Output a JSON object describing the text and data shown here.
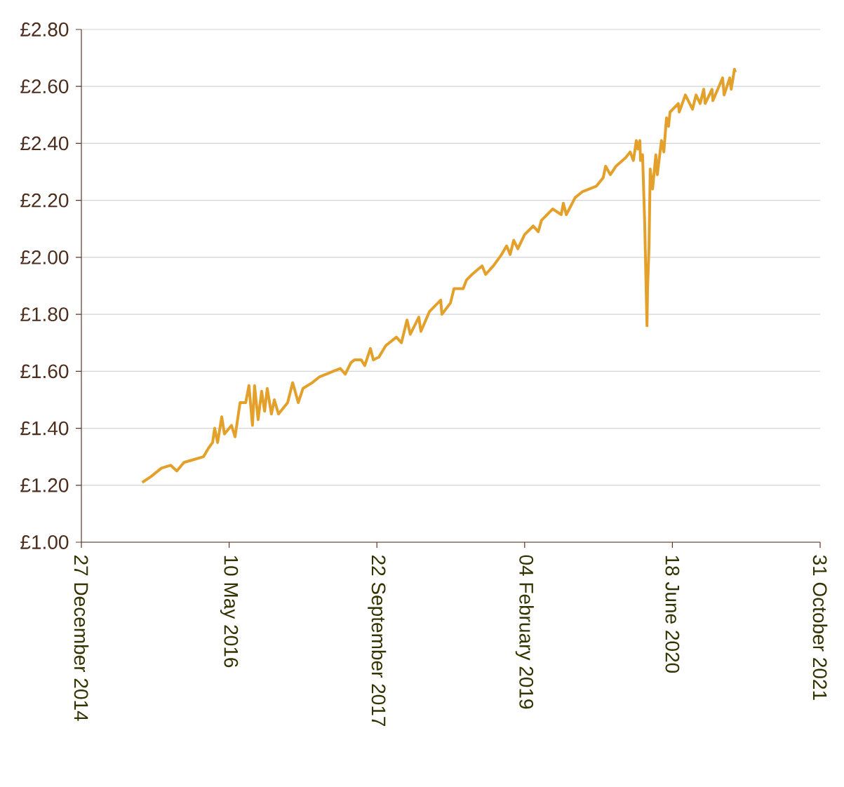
{
  "chart_data": {
    "type": "line",
    "color": "#e3a02a",
    "grid": "y",
    "xlim": [
      "2014-12-27",
      "2021-10-31"
    ],
    "xticks": [
      {
        "value": "2014-12-27",
        "label": "27 December 2014"
      },
      {
        "value": "2016-05-10",
        "label": "10 May 2016"
      },
      {
        "value": "2017-09-22",
        "label": "22 September 2017"
      },
      {
        "value": "2019-02-04",
        "label": "04 February 2019"
      },
      {
        "value": "2020-06-18",
        "label": "18 June 2020"
      },
      {
        "value": "2021-10-31",
        "label": "31 October 2021"
      }
    ],
    "ylim": [
      1.0,
      2.8
    ],
    "yticks": [
      {
        "value": 1.0,
        "label": "£1.00"
      },
      {
        "value": 1.2,
        "label": "£1.20"
      },
      {
        "value": 1.4,
        "label": "£1.40"
      },
      {
        "value": 1.6,
        "label": "£1.60"
      },
      {
        "value": 1.8,
        "label": "£1.80"
      },
      {
        "value": 2.0,
        "label": "£2.00"
      },
      {
        "value": 2.2,
        "label": "£2.20"
      },
      {
        "value": 2.4,
        "label": "£2.40"
      },
      {
        "value": 2.6,
        "label": "£2.60"
      },
      {
        "value": 2.8,
        "label": "£2.80"
      }
    ],
    "x": [
      "2015-07-21",
      "2015-08-19",
      "2015-09-24",
      "2015-10-25",
      "2015-11-15",
      "2015-12-09",
      "2016-01-11",
      "2016-02-13",
      "2016-03-01",
      "2016-03-15",
      "2016-03-22",
      "2016-04-01",
      "2016-04-15",
      "2016-04-24",
      "2016-05-18",
      "2016-05-30",
      "2016-06-16",
      "2016-07-05",
      "2016-07-16",
      "2016-07-28",
      "2016-08-04",
      "2016-08-16",
      "2016-08-28",
      "2016-09-07",
      "2016-09-16",
      "2016-09-30",
      "2016-10-10",
      "2016-10-24",
      "2016-11-24",
      "2016-12-11",
      "2016-12-30",
      "2017-01-15",
      "2017-02-15",
      "2017-03-11",
      "2017-04-04",
      "2017-04-27",
      "2017-05-21",
      "2017-06-07",
      "2017-06-26",
      "2017-07-08",
      "2017-07-31",
      "2017-08-12",
      "2017-08-31",
      "2017-09-10",
      "2017-09-29",
      "2017-10-22",
      "2017-11-27",
      "2017-12-14",
      "2018-01-02",
      "2018-01-13",
      "2018-02-11",
      "2018-02-18",
      "2018-03-19",
      "2018-04-26",
      "2018-04-30",
      "2018-05-29",
      "2018-06-10",
      "2018-07-11",
      "2018-07-22",
      "2018-08-10",
      "2018-09-13",
      "2018-09-25",
      "2018-10-21",
      "2018-11-18",
      "2018-12-05",
      "2018-12-17",
      "2018-12-29",
      "2019-01-12",
      "2019-02-04",
      "2019-03-05",
      "2019-03-22",
      "2019-04-02",
      "2019-05-10",
      "2019-06-08",
      "2019-06-15",
      "2019-06-25",
      "2019-07-25",
      "2019-08-18",
      "2019-10-05",
      "2019-10-28",
      "2019-11-05",
      "2019-11-21",
      "2019-12-10",
      "2020-01-12",
      "2020-01-27",
      "2020-02-07",
      "2020-02-17",
      "2020-02-22",
      "2020-02-29",
      "2020-03-02",
      "2020-03-09",
      "2020-03-16",
      "2020-03-24",
      "2020-03-26",
      "2020-03-31",
      "2020-04-04",
      "2020-04-12",
      "2020-04-23",
      "2020-04-28",
      "2020-05-12",
      "2020-05-20",
      "2020-05-29",
      "2020-06-05",
      "2020-06-10",
      "2020-07-08",
      "2020-07-11",
      "2020-08-01",
      "2020-08-25",
      "2020-09-06",
      "2020-09-20",
      "2020-10-02",
      "2020-10-07",
      "2020-10-30",
      "2020-11-02",
      "2020-12-05",
      "2020-12-10",
      "2020-12-29",
      "2021-01-03",
      "2021-01-14",
      "2021-01-17"
    ],
    "values": [
      1.21,
      1.23,
      1.26,
      1.27,
      1.25,
      1.28,
      1.29,
      1.3,
      1.33,
      1.35,
      1.4,
      1.35,
      1.44,
      1.38,
      1.41,
      1.37,
      1.49,
      1.49,
      1.55,
      1.41,
      1.55,
      1.43,
      1.53,
      1.46,
      1.54,
      1.45,
      1.5,
      1.45,
      1.49,
      1.56,
      1.49,
      1.54,
      1.56,
      1.58,
      1.59,
      1.6,
      1.61,
      1.59,
      1.63,
      1.64,
      1.64,
      1.62,
      1.68,
      1.64,
      1.65,
      1.69,
      1.72,
      1.7,
      1.78,
      1.73,
      1.79,
      1.74,
      1.81,
      1.85,
      1.8,
      1.84,
      1.89,
      1.89,
      1.92,
      1.94,
      1.97,
      1.94,
      1.97,
      2.01,
      2.04,
      2.01,
      2.06,
      2.03,
      2.08,
      2.11,
      2.09,
      2.13,
      2.17,
      2.15,
      2.19,
      2.15,
      2.21,
      2.23,
      2.25,
      2.28,
      2.32,
      2.29,
      2.32,
      2.35,
      2.37,
      2.34,
      2.41,
      2.38,
      2.41,
      2.34,
      2.36,
      2.13,
      1.76,
      1.89,
      2.04,
      2.31,
      2.24,
      2.36,
      2.29,
      2.41,
      2.37,
      2.49,
      2.46,
      2.51,
      2.54,
      2.51,
      2.57,
      2.52,
      2.57,
      2.54,
      2.59,
      2.54,
      2.59,
      2.55,
      2.63,
      2.57,
      2.63,
      2.59,
      2.66,
      2.65
    ]
  }
}
